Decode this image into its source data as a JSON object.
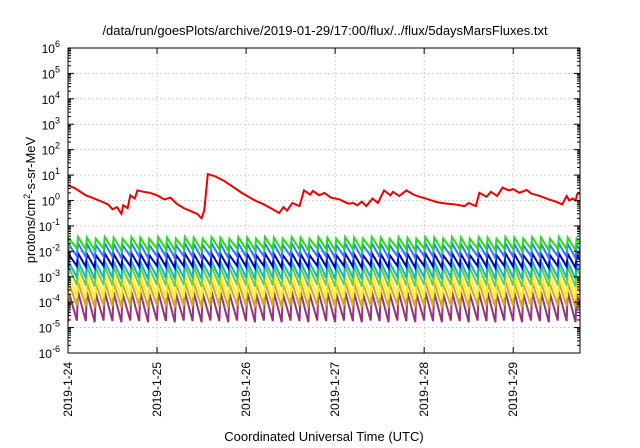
{
  "chart_data": {
    "type": "line",
    "title": "/data/run/goesPlots/archive/2019-01-29/17:00/flux/../flux/5daysMarsFluxes.txt",
    "xlabel": "Coordinated Universal Time (UTC)",
    "ylabel_main": "protons/cm",
    "ylabel_sup": "2",
    "ylabel_tail": "-s-sr-MeV",
    "xlim": [
      0,
      5.75
    ],
    "yscale": "log",
    "ylim_exp": [
      -6,
      6
    ],
    "grid": true,
    "x_ticks": [
      {
        "x": 0,
        "label": "2019-1-24"
      },
      {
        "x": 1,
        "label": "2019-1-25"
      },
      {
        "x": 2,
        "label": "2019-1-26"
      },
      {
        "x": 3,
        "label": "2019-1-27"
      },
      {
        "x": 4,
        "label": "2019-1-28"
      },
      {
        "x": 5,
        "label": "2019-1-29"
      }
    ],
    "y_ticks": [
      {
        "exp": -6,
        "base": "10",
        "sup": "-6"
      },
      {
        "exp": -5,
        "base": "10",
        "sup": "-5"
      },
      {
        "exp": -4,
        "base": "10",
        "sup": "-4"
      },
      {
        "exp": -3,
        "base": "10",
        "sup": "-3"
      },
      {
        "exp": -2,
        "base": "10",
        "sup": "-2"
      },
      {
        "exp": -1,
        "base": "10",
        "sup": "-1"
      },
      {
        "exp": 0,
        "base": "10",
        "sup": "0"
      },
      {
        "exp": 1,
        "base": "10",
        "sup": "1"
      },
      {
        "exp": 2,
        "base": "10",
        "sup": "2"
      },
      {
        "exp": 3,
        "base": "10",
        "sup": "3"
      },
      {
        "exp": 4,
        "base": "10",
        "sup": "4"
      },
      {
        "exp": 5,
        "base": "10",
        "sup": "5"
      },
      {
        "exp": 6,
        "base": "10",
        "sup": "6"
      }
    ],
    "series": [
      {
        "color": "#ee0000",
        "points": [
          [
            0,
            4.0
          ],
          [
            0.08,
            3.0
          ],
          [
            0.2,
            1.6
          ],
          [
            0.35,
            1.0
          ],
          [
            0.45,
            0.7
          ],
          [
            0.5,
            0.45
          ],
          [
            0.55,
            0.55
          ],
          [
            0.6,
            0.3
          ],
          [
            0.62,
            0.65
          ],
          [
            0.67,
            0.5
          ],
          [
            0.7,
            1.6
          ],
          [
            0.75,
            1.2
          ],
          [
            0.78,
            2.5
          ],
          [
            0.85,
            2.2
          ],
          [
            0.92,
            2.0
          ],
          [
            1.0,
            1.6
          ],
          [
            1.08,
            1.1
          ],
          [
            1.15,
            1.3
          ],
          [
            1.22,
            0.75
          ],
          [
            1.3,
            0.5
          ],
          [
            1.38,
            0.38
          ],
          [
            1.45,
            0.3
          ],
          [
            1.5,
            0.2
          ],
          [
            1.53,
            0.4
          ],
          [
            1.57,
            11.0
          ],
          [
            1.65,
            9.0
          ],
          [
            1.75,
            6.0
          ],
          [
            1.85,
            3.5
          ],
          [
            1.95,
            2.0
          ],
          [
            2.1,
            1.0
          ],
          [
            2.2,
            0.7
          ],
          [
            2.3,
            0.45
          ],
          [
            2.37,
            0.32
          ],
          [
            2.42,
            0.55
          ],
          [
            2.46,
            0.4
          ],
          [
            2.52,
            0.8
          ],
          [
            2.6,
            0.6
          ],
          [
            2.65,
            2.5
          ],
          [
            2.72,
            1.7
          ],
          [
            2.75,
            2.4
          ],
          [
            2.82,
            1.6
          ],
          [
            2.88,
            2.0
          ],
          [
            2.95,
            1.3
          ],
          [
            3.05,
            1.1
          ],
          [
            3.1,
            0.9
          ],
          [
            3.15,
            0.75
          ],
          [
            3.2,
            0.8
          ],
          [
            3.25,
            0.65
          ],
          [
            3.3,
            0.9
          ],
          [
            3.35,
            0.6
          ],
          [
            3.42,
            1.2
          ],
          [
            3.48,
            0.8
          ],
          [
            3.55,
            2.5
          ],
          [
            3.62,
            1.6
          ],
          [
            3.65,
            2.2
          ],
          [
            3.72,
            1.5
          ],
          [
            3.8,
            2.5
          ],
          [
            3.88,
            1.7
          ],
          [
            3.95,
            1.4
          ],
          [
            4.05,
            1.1
          ],
          [
            4.15,
            0.85
          ],
          [
            4.25,
            0.75
          ],
          [
            4.35,
            0.7
          ],
          [
            4.45,
            0.6
          ],
          [
            4.5,
            0.8
          ],
          [
            4.58,
            0.6
          ],
          [
            4.62,
            2.0
          ],
          [
            4.7,
            1.4
          ],
          [
            4.75,
            2.2
          ],
          [
            4.82,
            1.5
          ],
          [
            4.88,
            3.2
          ],
          [
            4.95,
            2.5
          ],
          [
            5.0,
            2.8
          ],
          [
            5.07,
            2.0
          ],
          [
            5.15,
            2.6
          ],
          [
            5.2,
            1.9
          ],
          [
            5.3,
            1.5
          ],
          [
            5.4,
            1.1
          ],
          [
            5.48,
            0.9
          ],
          [
            5.55,
            0.7
          ],
          [
            5.6,
            1.5
          ],
          [
            5.63,
            1.0
          ],
          [
            5.67,
            1.2
          ],
          [
            5.7,
            1.0
          ],
          [
            5.72,
            1.8
          ],
          [
            5.75,
            2.0
          ]
        ]
      },
      {
        "color": "#22dd22",
        "waveform": "sawtooth",
        "period": 0.1,
        "peak": 0.035,
        "trough": 0.012
      },
      {
        "color": "#3377ff",
        "waveform": "sawtooth",
        "period": 0.1,
        "peak": 0.02,
        "trough": 0.006
      },
      {
        "color": "#0000bb",
        "waveform": "sawtooth",
        "period": 0.1,
        "peak": 0.008,
        "trough": 0.0025
      },
      {
        "color": "#11bbbb",
        "waveform": "sawtooth",
        "period": 0.1,
        "peak": 0.004,
        "trough": 0.0009
      },
      {
        "color": "#77cc33",
        "waveform": "sawtooth",
        "period": 0.1,
        "peak": 0.0025,
        "trough": 0.00045
      },
      {
        "color": "#ffee22",
        "waveform": "sawtooth",
        "period": 0.1,
        "peak": 0.0012,
        "trough": 0.00015
      },
      {
        "color": "#ccaa22",
        "waveform": "sawtooth",
        "period": 0.1,
        "peak": 0.0006,
        "trough": 7e-05
      },
      {
        "color": "#993377",
        "waveform": "sawtooth",
        "period": 0.1,
        "peak": 0.00025,
        "trough": 1.8e-05
      }
    ]
  }
}
